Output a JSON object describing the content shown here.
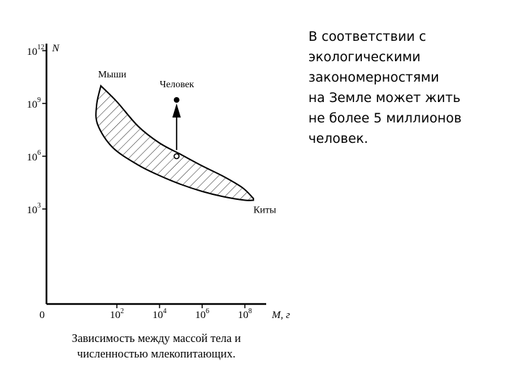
{
  "side_text": "В соответствии с\nэкологическими\nзакономерностями\nна Земле может жить\nне более 5 миллионов\nчеловек.",
  "caption": {
    "line1": "Зависимость между массой тела и",
    "line2": "численностью млекопитающих."
  },
  "chart_data": {
    "type": "area",
    "title": "",
    "xlabel": "M, г",
    "ylabel": "N",
    "x_scale": "log",
    "y_scale": "log",
    "x_origin_label": "0",
    "x_ticks": [
      {
        "base": "10",
        "exp": "2",
        "value": 100
      },
      {
        "base": "10",
        "exp": "4",
        "value": 10000
      },
      {
        "base": "10",
        "exp": "6",
        "value": 1000000
      },
      {
        "base": "10",
        "exp": "8",
        "value": 100000000
      }
    ],
    "y_ticks": [
      {
        "base": "10",
        "exp": "3",
        "value": 1000
      },
      {
        "base": "10",
        "exp": "6",
        "value": 1000000
      },
      {
        "base": "10",
        "exp": "9",
        "value": 1000000000
      },
      {
        "base": "10",
        "exp": "12",
        "value": 1000000000000
      }
    ],
    "xlim_log10": [
      -1.3,
      9.0
    ],
    "ylim_log10": [
      -2.4,
      12.4
    ],
    "region": {
      "hatched": true,
      "upper_boundary_log10": [
        [
          1.25,
          10.0
        ],
        [
          2.0,
          9.1
        ],
        [
          3.0,
          7.7
        ],
        [
          4.0,
          6.75
        ],
        [
          5.0,
          6.1
        ],
        [
          6.0,
          5.45
        ],
        [
          7.0,
          4.85
        ],
        [
          7.9,
          4.2
        ],
        [
          8.4,
          3.6
        ]
      ],
      "lower_boundary_log10": [
        [
          1.25,
          10.0
        ],
        [
          1.05,
          8.9
        ],
        [
          1.1,
          7.8
        ],
        [
          1.8,
          6.5
        ],
        [
          3.0,
          5.5
        ],
        [
          4.0,
          4.9
        ],
        [
          5.0,
          4.4
        ],
        [
          6.0,
          4.0
        ],
        [
          7.0,
          3.7
        ],
        [
          8.0,
          3.5
        ],
        [
          8.4,
          3.5
        ]
      ]
    },
    "annotations": [
      {
        "label": "Мыши",
        "x_log10": 1.25,
        "y_log10": 10.0
      },
      {
        "label": "Человек",
        "x_log10": 4.8,
        "y_log10": 9.2,
        "marker": "filled-dot"
      },
      {
        "label": "Киты",
        "x_log10": 8.4,
        "y_log10": 3.5
      }
    ],
    "human_expected": {
      "x_log10": 4.8,
      "y_log10": 6.0,
      "marker": "open-circle"
    },
    "arrow": {
      "from_log10": [
        4.8,
        6.35
      ],
      "to_log10": [
        4.8,
        9.0
      ]
    },
    "grid": false,
    "legend": "none"
  }
}
